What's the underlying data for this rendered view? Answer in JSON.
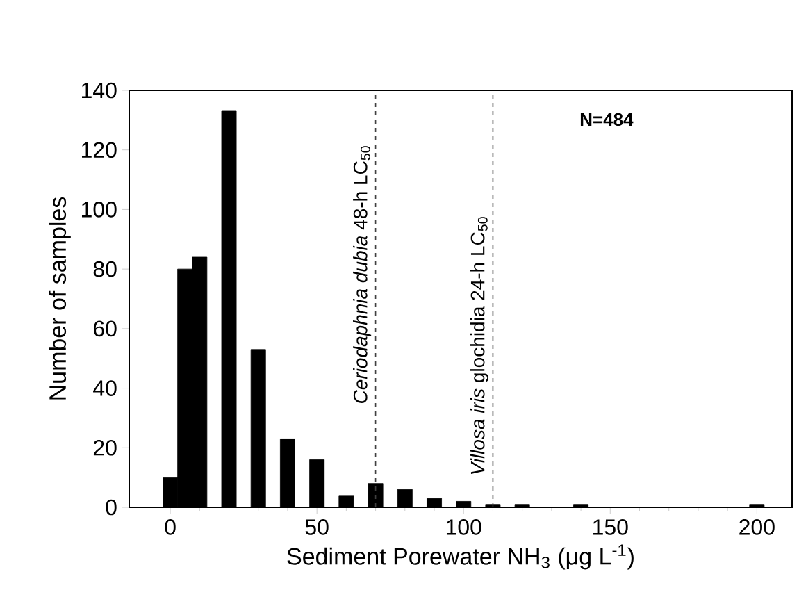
{
  "chart_data": {
    "type": "bar",
    "x": [
      0,
      5,
      10,
      20,
      30,
      40,
      50,
      60,
      70,
      80,
      90,
      100,
      110,
      120,
      140,
      200
    ],
    "values": [
      10,
      80,
      84,
      133,
      53,
      23,
      16,
      4,
      8,
      6,
      3,
      2,
      1,
      1,
      1,
      1
    ],
    "color": "#000000",
    "xlim": [
      -14,
      212
    ],
    "xticks": [
      0,
      50,
      100,
      150,
      200
    ],
    "ylim": [
      0,
      140
    ],
    "yticks": [
      0,
      20,
      40,
      60,
      80,
      100,
      120,
      140
    ],
    "xlabel": "Sediment Porewater NH$_{3}$ (μg L$^{-1}$)",
    "ylabel": "Number of samples",
    "ref_lines": [
      {
        "axis": "x",
        "value": 70,
        "label": "*Ceriodaphnia dubia* 48-h LC$_{50}$",
        "line_style": "dashed",
        "color": "#404040"
      },
      {
        "axis": "x",
        "value": 110,
        "label": "*Villosa iris* glochidia 24-h LC$_{50}$",
        "line_style": "dashed",
        "color": "#404040"
      }
    ],
    "annotations": [
      "N=484"
    ]
  }
}
